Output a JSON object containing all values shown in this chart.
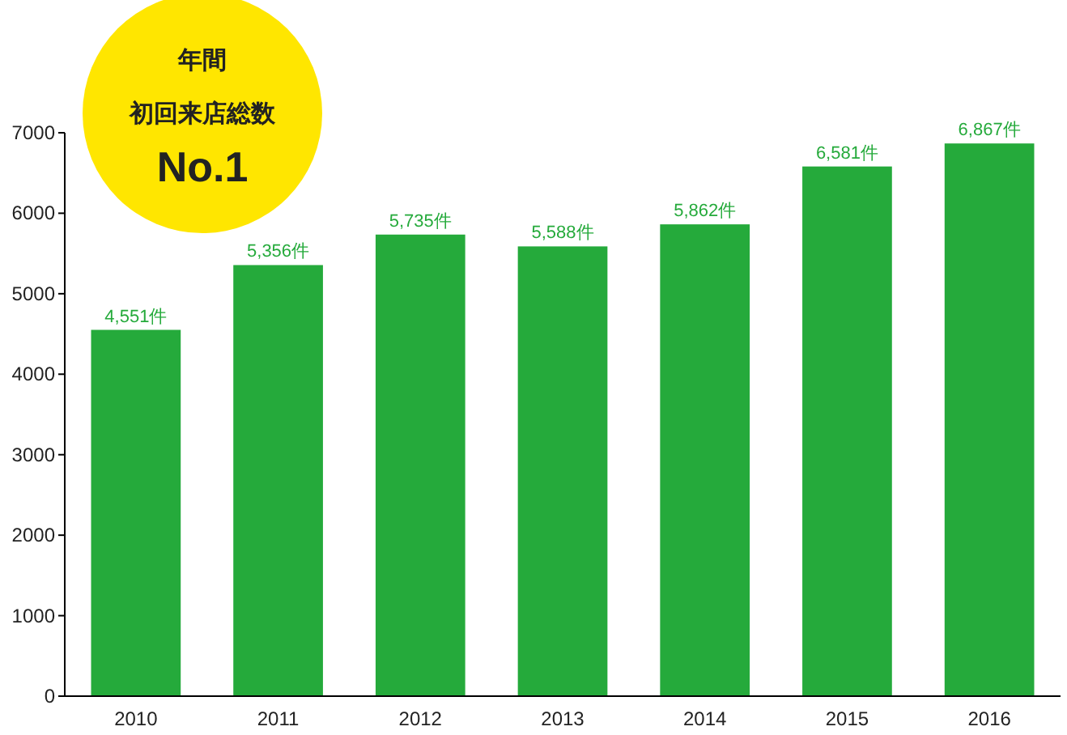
{
  "chart_data": {
    "type": "bar",
    "categories": [
      "2010",
      "2011",
      "2012",
      "2013",
      "2014",
      "2015",
      "2016"
    ],
    "values": [
      4551,
      5356,
      5735,
      5588,
      5862,
      6581,
      6867
    ],
    "value_labels": [
      "4,551件",
      "5,356件",
      "5,735件",
      "5,588件",
      "5,862件",
      "6,581件",
      "6,867件"
    ],
    "color": "#25aa3b",
    "ylim": [
      0,
      7000
    ],
    "yticks": [
      0,
      1000,
      2000,
      3000,
      4000,
      5000,
      6000,
      7000
    ],
    "annotations": [
      "年間",
      "初回来店総数",
      "No.1"
    ]
  }
}
